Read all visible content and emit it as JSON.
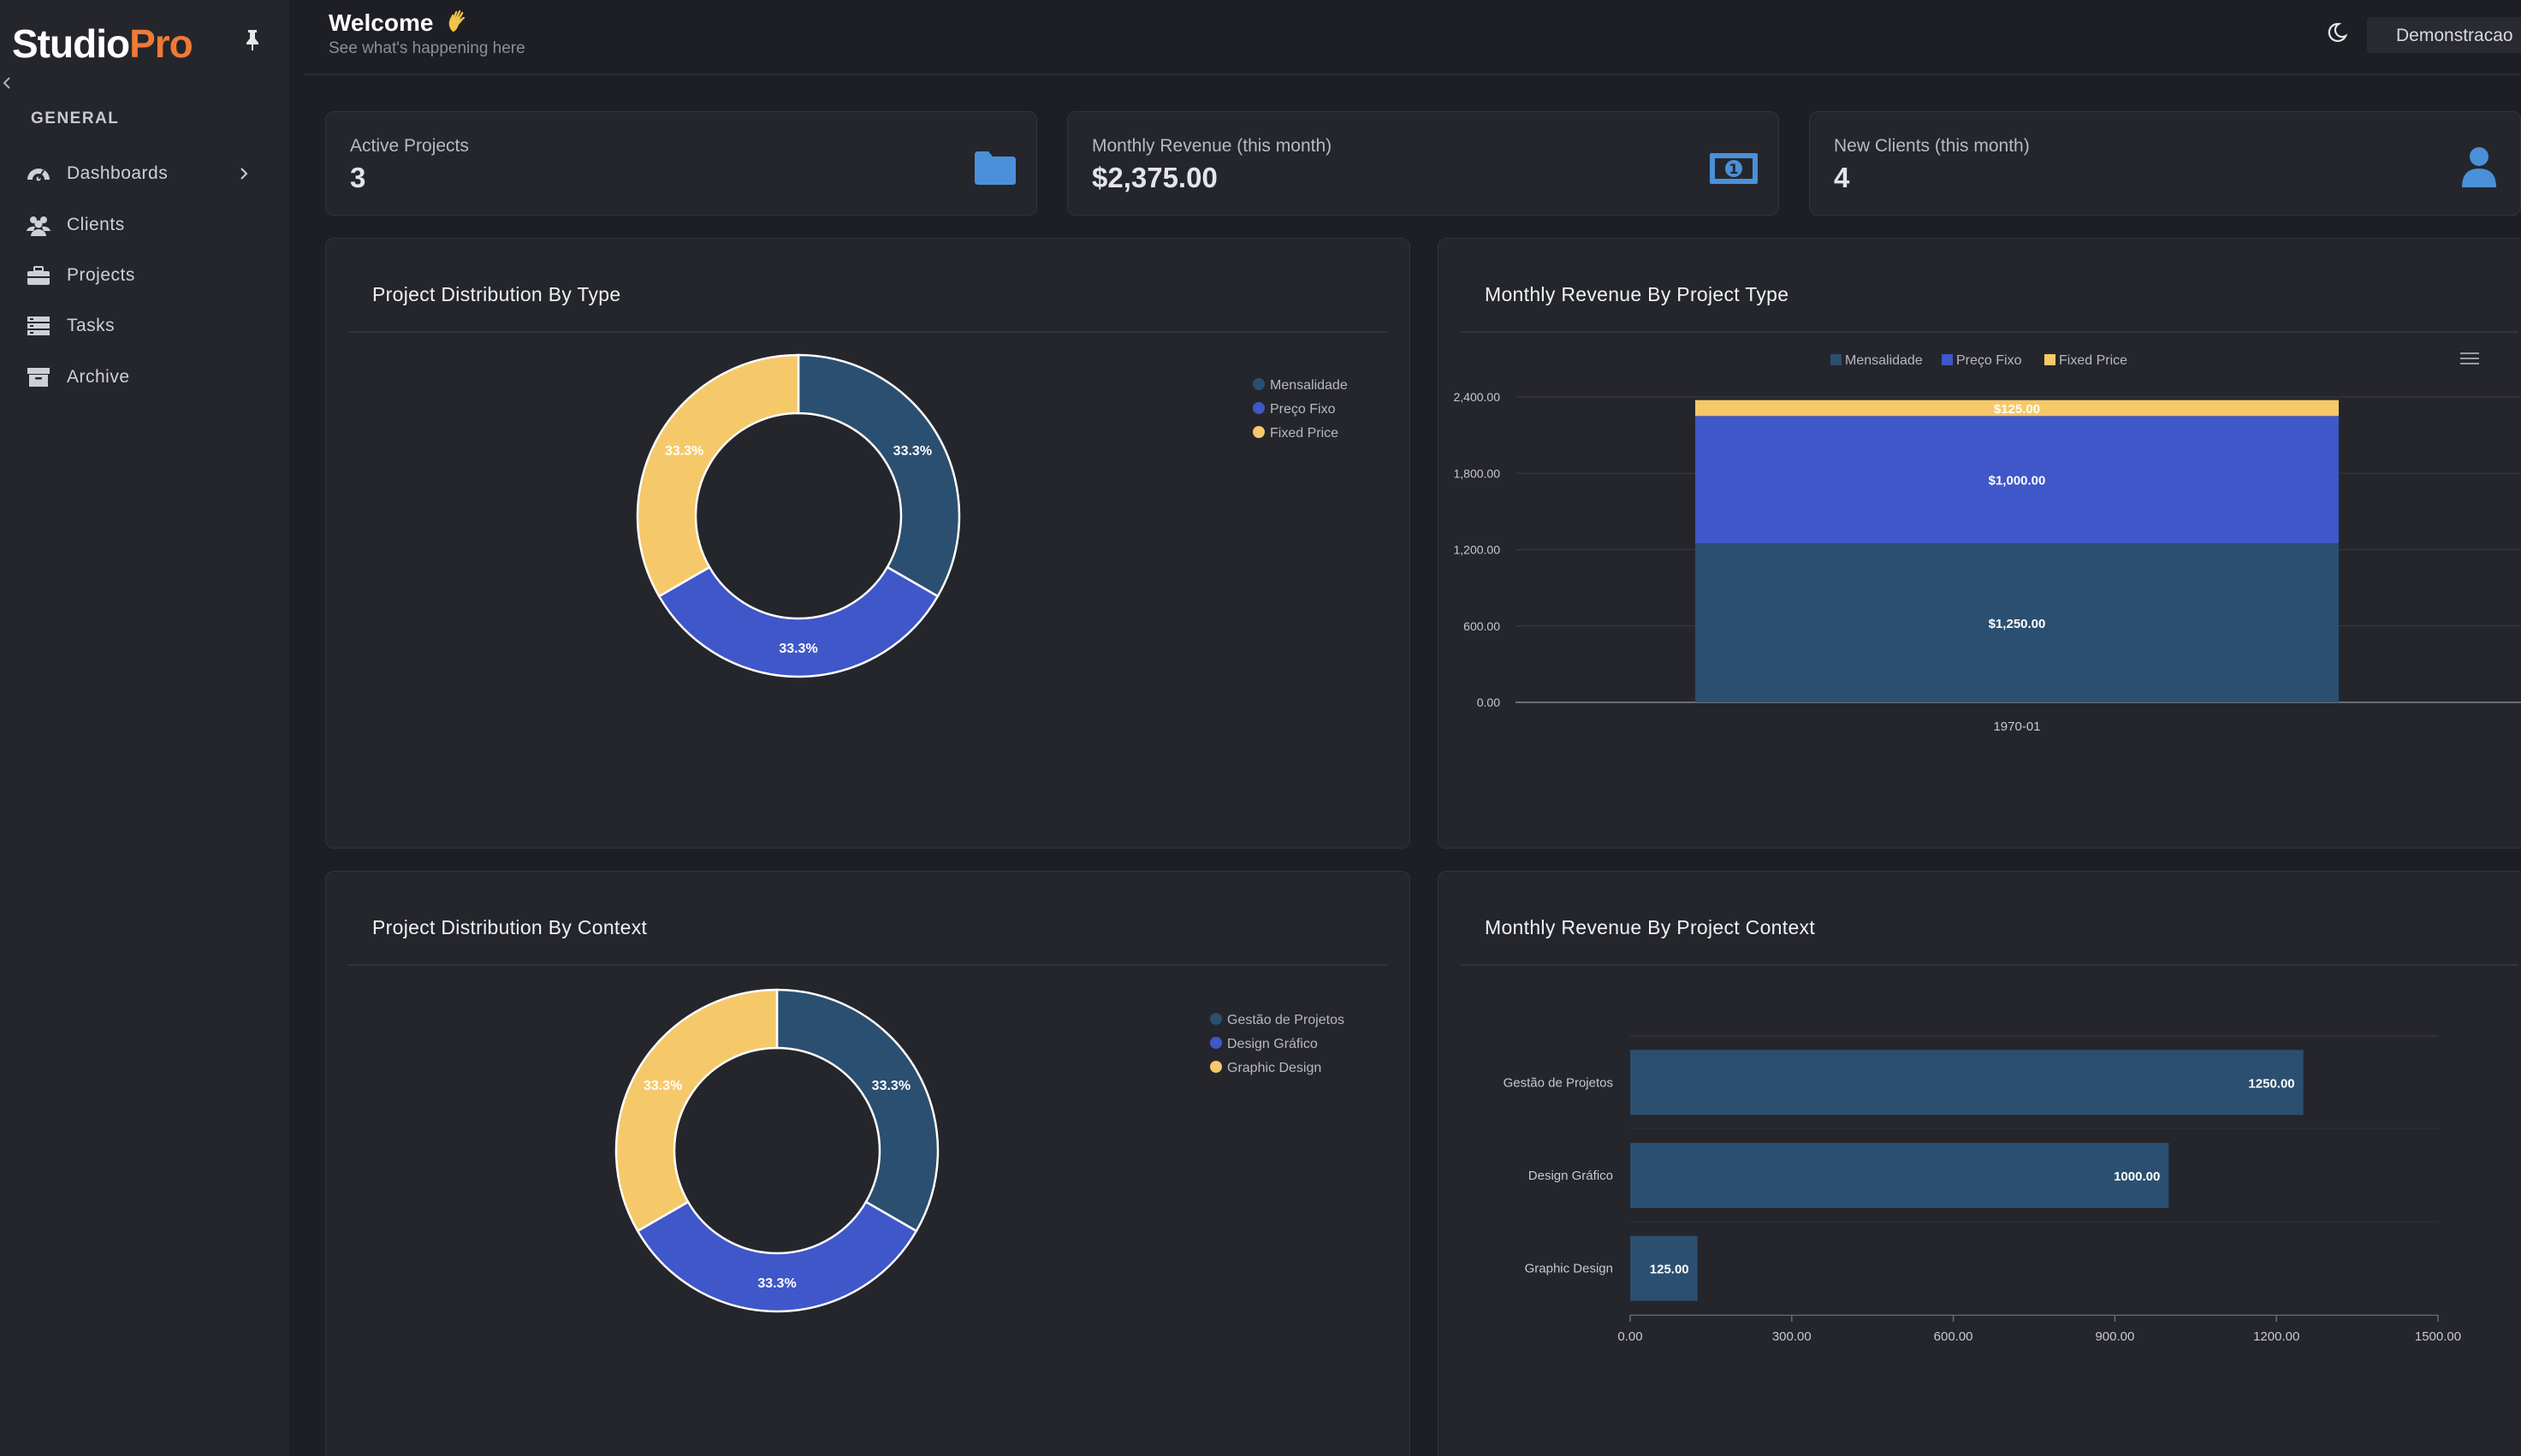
{
  "app": {
    "logo_main": "Studio",
    "logo_accent": "Pro",
    "accent_color": "#ef7a36"
  },
  "sidebar": {
    "section": "GENERAL",
    "items": [
      {
        "label": "Dashboards",
        "icon": "dashboard-icon"
      },
      {
        "label": "Clients",
        "icon": "users-icon"
      },
      {
        "label": "Projects",
        "icon": "briefcase-icon"
      },
      {
        "label": "Tasks",
        "icon": "tasks-icon"
      },
      {
        "label": "Archive",
        "icon": "archive-icon"
      }
    ]
  },
  "header": {
    "title": "Welcome",
    "subtitle": "See what's happening here",
    "user": "Demonstracao"
  },
  "stats": [
    {
      "label": "Active Projects",
      "value": "3",
      "icon": "folder-icon"
    },
    {
      "label": "Monthly Revenue (this month)",
      "value": "$2,375.00",
      "icon": "money-icon"
    },
    {
      "label": "New Clients (this month)",
      "value": "4",
      "icon": "user-icon"
    }
  ],
  "colors": {
    "series1": "#2b4f70",
    "series2": "#3f57c8",
    "series3": "#f5c96a"
  },
  "chart_data": [
    {
      "type": "pie",
      "title": "Project Distribution By Type",
      "categories": [
        "Mensalidade",
        "Preço Fixo",
        "Fixed Price"
      ],
      "values": [
        33.3,
        33.3,
        33.3
      ],
      "labels": [
        "33.3%",
        "33.3%",
        "33.3%"
      ],
      "legend": "top-right"
    },
    {
      "type": "bar",
      "title": "Monthly Revenue By Project Type",
      "categories": [
        "1970-01"
      ],
      "series": [
        {
          "name": "Mensalidade",
          "values": [
            1250
          ],
          "label": "$1,250.00"
        },
        {
          "name": "Preço Fixo",
          "values": [
            1000
          ],
          "label": "$1,000.00"
        },
        {
          "name": "Fixed Price",
          "values": [
            125
          ],
          "label": "$125.00"
        }
      ],
      "stacked": true,
      "ylim": [
        0,
        2400
      ],
      "yticks": [
        "0.00",
        "600.00",
        "1,200.00",
        "1,800.00",
        "2,400.00"
      ],
      "legend": "top"
    },
    {
      "type": "pie",
      "title": "Project Distribution By Context",
      "categories": [
        "Gestão de Projetos",
        "Design Gráfico",
        "Graphic Design"
      ],
      "values": [
        33.3,
        33.3,
        33.3
      ],
      "labels": [
        "33.3%",
        "33.3%",
        "33.3%"
      ],
      "legend": "top-right"
    },
    {
      "type": "bar",
      "orientation": "horizontal",
      "title": "Monthly Revenue By Project Context",
      "categories": [
        "Gestão de Projetos",
        "Design Gráfico",
        "Graphic Design"
      ],
      "values": [
        1250,
        1000,
        125
      ],
      "labels": [
        "1250.00",
        "1000.00",
        "125.00"
      ],
      "xlim": [
        0,
        1500
      ],
      "xticks": [
        "0.00",
        "300.00",
        "600.00",
        "900.00",
        "1200.00",
        "1500.00"
      ]
    }
  ]
}
